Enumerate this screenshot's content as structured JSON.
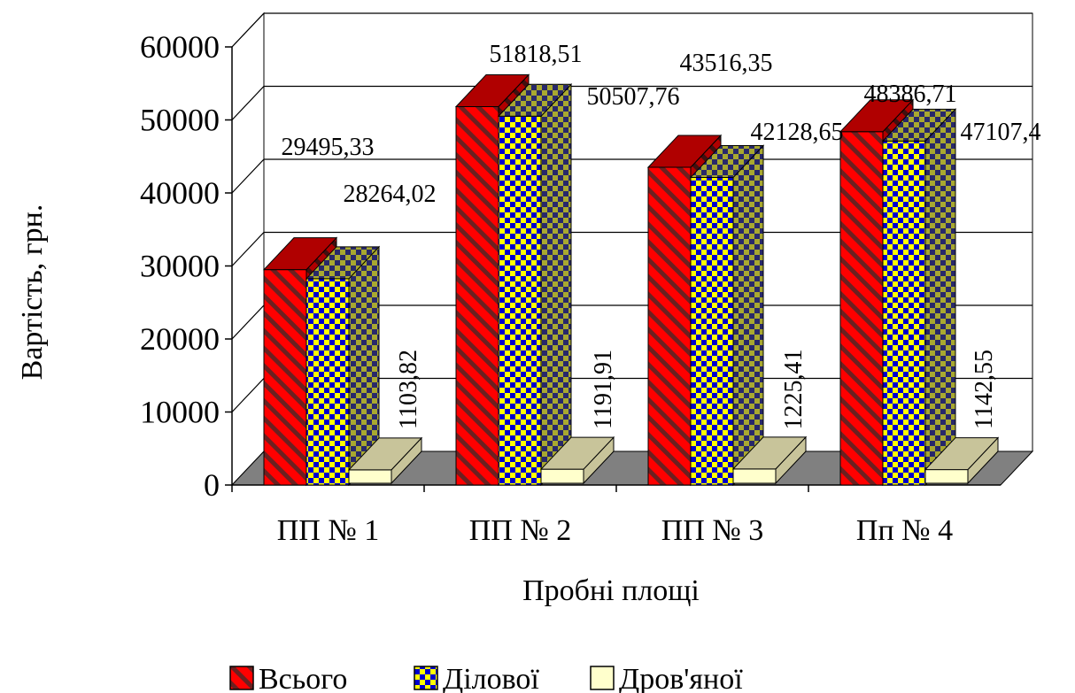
{
  "chart_data": {
    "type": "bar",
    "title": "",
    "xlabel": "Пробні площі",
    "ylabel": "Вартість, грн.",
    "categories": [
      "ПП № 1",
      "ПП № 2",
      "ПП № 3",
      "Пп № 4"
    ],
    "series": [
      {
        "name": "Всього",
        "values": [
          29495.33,
          51818.51,
          43516.35,
          48386.71
        ],
        "labels": [
          "29495,33",
          "51818,51",
          "43516,35",
          "48386,71"
        ],
        "color": "#ff0000"
      },
      {
        "name": "Ділової",
        "values": [
          28264.02,
          50507.76,
          42128.65,
          47107.4
        ],
        "labels": [
          "28264,02",
          "50507,76",
          "42128,65",
          "47107,4"
        ],
        "color": "#ffff00"
      },
      {
        "name": "Дров'яної",
        "values": [
          1103.82,
          1191.91,
          1225.41,
          1142.55
        ],
        "labels": [
          "1103,82",
          "1191,91",
          "1225,41",
          "1142,55"
        ],
        "color": "#ffffcc"
      }
    ],
    "yticks": [
      "0",
      "10000",
      "20000",
      "30000",
      "40000",
      "50000",
      "60000"
    ],
    "ylim": [
      0,
      60000
    ],
    "grid": true,
    "legend": "bottom",
    "style": "3d-clustered-column"
  }
}
